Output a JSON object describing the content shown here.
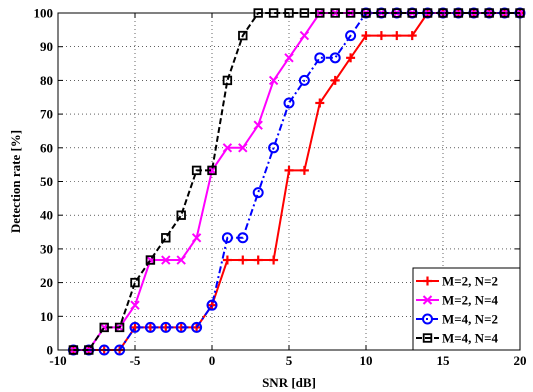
{
  "chart_data": {
    "type": "line",
    "title": "",
    "xlabel": "SNR [dB]",
    "ylabel": "Detection rate [%]",
    "xlim": [
      -10,
      20
    ],
    "ylim": [
      0,
      100
    ],
    "xticks": [
      -10,
      -5,
      0,
      5,
      10,
      15,
      20
    ],
    "yticks": [
      0,
      10,
      20,
      30,
      40,
      50,
      60,
      70,
      80,
      90,
      100
    ],
    "grid": true,
    "legend_position": "bottom-right",
    "x": [
      -9,
      -8,
      -7,
      -6,
      -5,
      -4,
      -3,
      -2,
      -1,
      0,
      1,
      2,
      3,
      4,
      5,
      6,
      7,
      8,
      9,
      10,
      11,
      12,
      13,
      14,
      15,
      16,
      17,
      18,
      19,
      20
    ],
    "series": [
      {
        "name": "M=2, N=2",
        "color": "#ff0000",
        "line_style": "solid",
        "marker": "plus",
        "values": [
          0,
          0,
          0,
          0,
          6.7,
          6.7,
          6.7,
          6.7,
          6.7,
          13.3,
          26.7,
          26.7,
          26.7,
          26.7,
          53.3,
          53.3,
          73.3,
          80,
          86.7,
          93.3,
          93.3,
          93.3,
          93.3,
          100,
          100,
          100,
          100,
          100,
          100,
          100
        ]
      },
      {
        "name": "M=2, N=4",
        "color": "#ff00ff",
        "line_style": "solid",
        "marker": "x",
        "values": [
          0,
          0,
          6.7,
          6.7,
          13.3,
          26.7,
          26.7,
          26.7,
          33.3,
          53.3,
          60,
          60,
          66.7,
          80,
          86.7,
          93.3,
          100,
          100,
          100,
          100,
          100,
          100,
          100,
          100,
          100,
          100,
          100,
          100,
          100,
          100
        ]
      },
      {
        "name": "M=4, N=2",
        "color": "#0000ff",
        "line_style": "dashdot",
        "marker": "circle",
        "values": [
          0,
          0,
          0,
          0,
          6.7,
          6.7,
          6.7,
          6.7,
          6.7,
          13.3,
          33.3,
          33.3,
          46.7,
          60,
          73.3,
          80,
          86.7,
          86.7,
          93.3,
          100,
          100,
          100,
          100,
          100,
          100,
          100,
          100,
          100,
          100,
          100
        ]
      },
      {
        "name": "M=4, N=4",
        "color": "#000000",
        "line_style": "dashed",
        "marker": "square",
        "values": [
          0,
          0,
          6.7,
          6.7,
          20,
          26.7,
          33.3,
          40,
          53.3,
          53.3,
          80,
          93.3,
          100,
          100,
          100,
          100,
          100,
          100,
          100,
          100,
          100,
          100,
          100,
          100,
          100,
          100,
          100,
          100,
          100,
          100
        ]
      }
    ]
  }
}
